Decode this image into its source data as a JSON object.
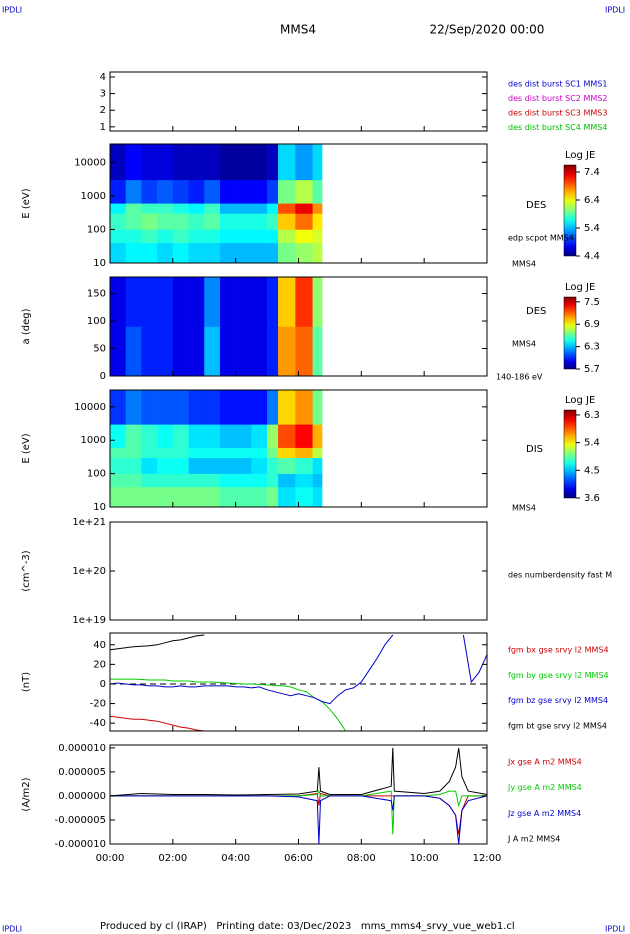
{
  "header": {
    "left": "IPDLI",
    "right": "IPDLI",
    "title": "MMS4",
    "date": "22/Sep/2020 00:00"
  },
  "footer": {
    "left": "IPDLI",
    "text": "Produced by cl (IRAP)   Printing date: 03/Dec/2023   mms_mms4_srvy_vue_web1.cl",
    "right": "IPDLI"
  },
  "chart_data": [
    {
      "type": "line",
      "xlim": [
        0,
        12
      ],
      "ylim": [
        0.75,
        4.3
      ],
      "yticks": [
        1,
        2,
        3,
        4
      ],
      "legend": [
        {
          "name": "des dist burst SC1 MMS1",
          "color": "#0000cc"
        },
        {
          "name": "des dist burst SC2 MMS2",
          "color": "#cc00cc"
        },
        {
          "name": "des dist burst SC3 MMS3",
          "color": "#cc0000"
        },
        {
          "name": "des dist burst SC4 MMS4",
          "color": "#00bb00"
        }
      ]
    },
    {
      "type": "heatmap",
      "ylabel": "E (eV)",
      "log": true,
      "xlim": [
        0,
        12
      ],
      "ylim": [
        10,
        35000
      ],
      "yticks": [
        10,
        100,
        1000,
        10000
      ],
      "x": [
        0,
        0.5,
        1,
        1.5,
        2,
        2.5,
        3,
        3.5,
        4,
        4.5,
        5,
        5.35,
        5.9,
        6.45,
        6.75
      ],
      "y": [
        10,
        40,
        100,
        300,
        600,
        3000,
        35000
      ],
      "values": [
        [
          5.5,
          5.6,
          5.6,
          5.5,
          5.6,
          5.5,
          5.5,
          5.4,
          5.4,
          5.4,
          5.4,
          6.0,
          6.1,
          6.2
        ],
        [
          5.7,
          5.7,
          5.8,
          5.7,
          5.8,
          5.7,
          5.7,
          5.6,
          5.6,
          5.6,
          5.6,
          6.2,
          6.4,
          6.3
        ],
        [
          5.8,
          5.9,
          6.0,
          5.9,
          5.9,
          5.8,
          5.9,
          5.7,
          5.7,
          5.7,
          5.8,
          6.6,
          6.9,
          6.5
        ],
        [
          5.6,
          5.9,
          5.8,
          5.8,
          5.7,
          5.6,
          5.8,
          5.4,
          5.4,
          5.4,
          5.6,
          7.0,
          7.3,
          6.8
        ],
        [
          4.9,
          5.2,
          5.0,
          5.1,
          5.0,
          4.9,
          5.1,
          4.8,
          4.8,
          4.8,
          5.0,
          6.0,
          6.2,
          5.9
        ],
        [
          4.6,
          4.8,
          4.7,
          4.7,
          4.6,
          4.6,
          4.6,
          4.5,
          4.5,
          4.5,
          4.6,
          5.5,
          5.3,
          5.5
        ]
      ],
      "clim": [
        4.4,
        7.65
      ],
      "cticks": [
        4.4,
        5.4,
        6.4,
        7.4
      ],
      "colorbar_label": "Log JE",
      "annotations": [
        "DES",
        "edp scpot MMS4",
        "MMS4"
      ]
    },
    {
      "type": "heatmap",
      "ylabel": "a (deg)",
      "log": false,
      "xlim": [
        0,
        12
      ],
      "ylim": [
        0,
        180
      ],
      "yticks": [
        0,
        50,
        100,
        150
      ],
      "x": [
        0,
        0.5,
        1,
        1.5,
        2,
        2.5,
        3,
        3.5,
        4,
        4.5,
        5,
        5.35,
        5.9,
        6.45,
        6.75
      ],
      "y": [
        0,
        90,
        180
      ],
      "values": [
        [
          5.9,
          6.1,
          6.0,
          6.0,
          5.9,
          5.9,
          6.3,
          5.9,
          5.9,
          5.9,
          6.0,
          7.1,
          7.2,
          6.6
        ],
        [
          5.9,
          6.0,
          6.0,
          6.0,
          5.9,
          5.9,
          6.2,
          5.9,
          5.9,
          5.9,
          6.0,
          7.0,
          7.3,
          6.7
        ]
      ],
      "clim": [
        5.7,
        7.63
      ],
      "cticks": [
        5.7,
        6.3,
        6.9,
        7.5
      ],
      "colorbar_label": "Log JE",
      "annotations": [
        "DES",
        "MMS4",
        "140-186 eV"
      ]
    },
    {
      "type": "heatmap",
      "ylabel": "E (eV)",
      "log": true,
      "xlim": [
        0,
        12
      ],
      "ylim": [
        10,
        32000
      ],
      "yticks": [
        10,
        100,
        1000,
        10000
      ],
      "x": [
        0,
        0.5,
        1,
        1.5,
        2,
        2.5,
        3,
        3.5,
        4,
        4.5,
        5,
        5.35,
        5.9,
        6.45,
        6.75
      ],
      "y": [
        10,
        40,
        100,
        300,
        600,
        3000,
        32000
      ],
      "values": [
        [
          5.0,
          5.0,
          5.0,
          5.0,
          5.0,
          5.0,
          5.0,
          4.9,
          4.9,
          4.9,
          5.0,
          4.6,
          4.7,
          4.6
        ],
        [
          4.9,
          4.9,
          4.8,
          4.8,
          4.8,
          4.8,
          4.8,
          4.7,
          4.7,
          4.7,
          4.8,
          4.5,
          4.6,
          4.5
        ],
        [
          4.8,
          4.8,
          4.6,
          4.7,
          4.7,
          4.5,
          4.5,
          4.5,
          4.5,
          4.6,
          4.8,
          4.9,
          4.8,
          4.6
        ],
        [
          4.9,
          4.9,
          4.8,
          4.8,
          4.8,
          4.7,
          4.7,
          4.7,
          4.7,
          4.7,
          5.0,
          5.5,
          5.6,
          5.2
        ],
        [
          4.7,
          4.9,
          4.8,
          4.7,
          4.8,
          4.6,
          4.6,
          4.5,
          4.5,
          4.6,
          5.1,
          5.9,
          6.1,
          5.6
        ],
        [
          4.1,
          4.3,
          4.2,
          4.2,
          4.2,
          4.1,
          4.1,
          4.0,
          4.0,
          4.0,
          4.3,
          5.5,
          5.7,
          5.0
        ]
      ],
      "clim": [
        3.6,
        6.46
      ],
      "cticks": [
        3.6,
        4.5,
        5.4,
        6.3
      ],
      "colorbar_label": "Log JE",
      "annotations": [
        "DIS",
        "MMS4"
      ]
    },
    {
      "type": "line",
      "ylabel": "(cm^-3)",
      "log": true,
      "xlim": [
        0,
        12
      ],
      "ylim": [
        1e+19,
        1e+21
      ],
      "yticks": [
        {
          "value": 1e+19,
          "label": "1e+19"
        },
        {
          "value": 1e+20,
          "label": "1e+20"
        },
        {
          "value": 1e+21,
          "label": "1e+21"
        }
      ],
      "annotations": [
        "des numberdensity fast M"
      ]
    },
    {
      "type": "line",
      "ylabel": "(nT)",
      "xlim": [
        0,
        12
      ],
      "ylim": [
        -48,
        52
      ],
      "yticks": [
        40,
        20,
        0,
        -20,
        -40
      ],
      "zero_line": true,
      "x": [
        0,
        0.25,
        0.5,
        0.75,
        1,
        1.25,
        1.5,
        1.75,
        2,
        2.25,
        2.5,
        2.75,
        3,
        3.25,
        3.5,
        3.75,
        4,
        4.25,
        4.5,
        4.75,
        5,
        5.25,
        5.5,
        5.75,
        6,
        6.25,
        6.5,
        6.75,
        7,
        7.25,
        7.5,
        7.75,
        8,
        8.25,
        8.5,
        8.75,
        9,
        9.25,
        9.5,
        9.75,
        10,
        10.25,
        10.5,
        10.75,
        11,
        11.25,
        11.5,
        11.75,
        12
      ],
      "series": [
        {
          "name": "fgm bx gse srvy l2 MMS4",
          "color": "#cc0000",
          "values": [
            -33,
            -34,
            -35,
            -36,
            -36,
            -37,
            -38,
            -40,
            -42,
            -44,
            -45,
            -47,
            -48,
            null,
            null,
            null,
            null,
            null,
            null,
            null,
            null,
            null,
            null,
            null,
            null,
            null,
            null,
            null,
            null,
            null,
            null,
            null,
            null,
            null,
            null,
            null,
            null,
            null,
            null,
            null,
            null,
            null,
            null,
            null,
            null,
            null,
            null,
            null,
            null
          ]
        },
        {
          "name": "fgm by gse srvy l2 MMS4",
          "color": "#00cc00",
          "values": [
            5,
            5,
            5,
            5,
            4.5,
            4,
            4,
            4,
            3,
            3,
            3,
            2,
            2,
            2,
            1.5,
            1,
            0.5,
            0,
            0,
            -0.5,
            -1,
            -1.5,
            -2,
            -3,
            -6,
            -8,
            -14,
            -18,
            -26,
            -36,
            -48,
            null,
            null,
            null,
            null,
            null,
            null,
            null,
            null,
            null,
            null,
            null,
            null,
            null,
            null,
            null,
            null,
            null,
            null
          ]
        },
        {
          "name": "fgm bz gse srvy l2 MMS4",
          "color": "#0000cc",
          "values": [
            0,
            1,
            0,
            -1,
            -1,
            -2,
            -2,
            -3,
            -3,
            -2,
            -3,
            -3,
            -2,
            -2,
            -2,
            -2,
            -3,
            -3,
            -4,
            -3,
            -6,
            -8,
            -10,
            -12,
            -10,
            -12,
            -14,
            -18,
            -20,
            -12,
            -6,
            -4,
            2,
            14,
            26,
            40,
            50,
            null,
            null,
            null,
            null,
            null,
            null,
            null,
            null,
            50,
            2,
            12,
            30
          ]
        },
        {
          "name": "fgm bt gse srvy l2 MMS4",
          "color": "#000000",
          "values": [
            35,
            36,
            37,
            38,
            38.5,
            39,
            40,
            42,
            44,
            45,
            47,
            49,
            50,
            null,
            null,
            null,
            null,
            null,
            null,
            null,
            null,
            null,
            null,
            null,
            null,
            null,
            null,
            null,
            null,
            null,
            null,
            null,
            null,
            null,
            null,
            null,
            null,
            null,
            null,
            null,
            null,
            null,
            null,
            null,
            null,
            null,
            null,
            null,
            null
          ]
        }
      ]
    },
    {
      "type": "line",
      "ylabel": "(A/m2)",
      "xlim": [
        0,
        12
      ],
      "ylim": [
        -1e-05,
        1.06e-05
      ],
      "yticks": [
        {
          "value": 1e-05,
          "label": "0.000010"
        },
        {
          "value": 5e-06,
          "label": "0.000005"
        },
        {
          "value": 0,
          "label": "0.000000"
        },
        {
          "value": -5e-06,
          "label": "-0.000005"
        },
        {
          "value": -1e-05,
          "label": "-0.000010"
        }
      ],
      "xticks": [
        {
          "value": 0,
          "label": "00:00"
        },
        {
          "value": 2,
          "label": "02:00"
        },
        {
          "value": 4,
          "label": "04:00"
        },
        {
          "value": 6,
          "label": "06:00"
        },
        {
          "value": 8,
          "label": "08:00"
        },
        {
          "value": 10,
          "label": "10:00"
        },
        {
          "value": 12,
          "label": "12:00"
        }
      ],
      "x": [
        0,
        1,
        2,
        3,
        4,
        5,
        6,
        6.6,
        6.65,
        6.7,
        7,
        8,
        8.95,
        9.0,
        9.05,
        10,
        10.5,
        10.8,
        11.0,
        11.1,
        11.2,
        11.4,
        12
      ],
      "series": [
        {
          "name": "Jx gse A m2 MMS4",
          "color": "#cc0000",
          "values": [
            0,
            0,
            0,
            0,
            0,
            0,
            0,
            5e-07,
            -2e-06,
            5e-07,
            0,
            0,
            0,
            0,
            0,
            0,
            -5e-07,
            -2e-06,
            -4e-06,
            -8e-06,
            -3e-06,
            0,
            0
          ]
        },
        {
          "name": "Jy gse A m2 MMS4",
          "color": "#00cc00",
          "values": [
            0,
            0,
            0,
            0,
            0,
            0,
            0,
            3e-07,
            1e-06,
            0,
            0,
            0,
            1e-06,
            -8e-06,
            0,
            0,
            3e-07,
            1e-06,
            1e-06,
            -2e-06,
            0,
            0,
            0
          ]
        },
        {
          "name": "Jz gse A m2 MMS4",
          "color": "#0000cc",
          "values": [
            0,
            0,
            0,
            0,
            0,
            0,
            -2e-07,
            -1e-06,
            -1e-05,
            -1e-06,
            0,
            0,
            -1e-06,
            -3e-06,
            0,
            0,
            -5e-07,
            -2e-06,
            -4e-06,
            -1e-05,
            -3e-06,
            -1e-06,
            0
          ]
        },
        {
          "name": "J A m2 MMS4",
          "color": "#000000",
          "values": [
            0,
            5e-07,
            3e-07,
            3e-07,
            2e-07,
            3e-07,
            4e-07,
            1e-06,
            6e-06,
            1e-06,
            3e-07,
            3e-07,
            2e-06,
            1e-05,
            1e-06,
            5e-07,
            1e-06,
            3e-06,
            6e-06,
            1e-05,
            4e-06,
            1e-06,
            3e-07
          ]
        }
      ]
    }
  ]
}
